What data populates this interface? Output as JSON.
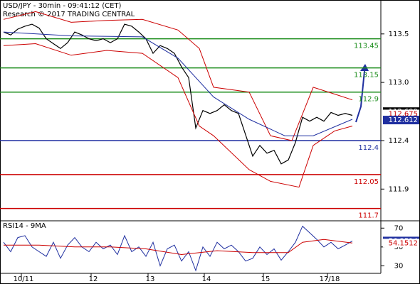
{
  "chart_data": [
    {
      "type": "line",
      "title": "USD/JPY - 30min - 09:41:12 (CET)",
      "subtitle": "Research © 2017 TRADING CENTRAL",
      "xlim": [
        -0.5,
        53
      ],
      "ylim": [
        111.58,
        113.85
      ],
      "yticks": [
        113.5,
        {
          "value": 113.0,
          "label": "113.0"
        },
        112.4,
        111.9
      ],
      "series": [
        {
          "color": "#000000",
          "width": 1.2,
          "x": [
            0,
            1,
            2,
            3,
            4,
            5,
            6,
            7,
            8,
            9,
            10,
            11,
            12,
            13,
            14,
            15,
            16,
            17,
            18,
            19,
            20,
            21,
            22,
            23,
            24,
            25,
            26,
            27,
            28,
            29,
            30,
            31,
            32,
            33,
            34,
            35,
            36,
            37,
            38,
            39,
            40,
            41,
            42,
            43,
            44,
            45,
            46,
            47,
            48,
            49
          ],
          "values": [
            113.52,
            113.49,
            113.55,
            113.58,
            113.6,
            113.56,
            113.45,
            113.4,
            113.35,
            113.41,
            113.52,
            113.49,
            113.45,
            113.43,
            113.45,
            113.41,
            113.45,
            113.6,
            113.58,
            113.52,
            113.45,
            113.3,
            113.38,
            113.35,
            113.3,
            113.16,
            113.05,
            112.53,
            112.71,
            112.68,
            112.71,
            112.77,
            112.71,
            112.68,
            112.46,
            112.24,
            112.35,
            112.27,
            112.3,
            112.16,
            112.2,
            112.38,
            112.64,
            112.6,
            112.64,
            112.6,
            112.69,
            112.66,
            112.68,
            112.66
          ]
        },
        {
          "color": "#cc0000",
          "width": 1,
          "x": [
            0,
            4.5,
            9.5,
            14.5,
            19.5,
            24.5,
            27.5,
            29.5,
            34.5,
            37.5,
            40.5,
            43.5,
            46.5,
            49
          ],
          "values": [
            113.65,
            113.73,
            113.62,
            113.64,
            113.65,
            113.54,
            113.35,
            112.95,
            112.9,
            112.45,
            112.4,
            112.95,
            112.88,
            112.82
          ]
        },
        {
          "color": "#cc0000",
          "width": 1,
          "x": [
            0,
            4.5,
            9.5,
            14.5,
            19.5,
            24.5,
            27.5,
            29.5,
            34.5,
            37.5,
            41.5,
            43.5,
            46.5,
            49
          ],
          "values": [
            113.38,
            113.4,
            113.28,
            113.33,
            113.3,
            113.05,
            112.55,
            112.45,
            112.1,
            111.98,
            111.92,
            112.35,
            112.5,
            112.55
          ]
        },
        {
          "color": "#1f2fa0",
          "width": 1,
          "x": [
            0,
            9.5,
            19.5,
            24.5,
            29.5,
            34.5,
            39.5,
            43.5,
            49
          ],
          "values": [
            113.52,
            113.48,
            113.47,
            113.25,
            112.85,
            112.62,
            112.45,
            112.45,
            112.62
          ]
        }
      ],
      "levels": [
        {
          "value": 113.45,
          "color": "#1a8c1a"
        },
        {
          "value": 113.15,
          "color": "#1a8c1a"
        },
        {
          "value": 112.9,
          "color": "#1a8c1a"
        },
        {
          "value": 112.4,
          "color": "#1f2fa0"
        },
        {
          "value": 112.05,
          "color": "#cc0000"
        },
        {
          "value": 111.7,
          "color": "#cc0000"
        }
      ],
      "markers": [
        {
          "value": 112.699,
          "color": "#000000",
          "filled": true
        },
        {
          "value": 112.675,
          "color": "#cc0000",
          "filled": false
        },
        {
          "value": 112.612,
          "color": "#1f2fa0",
          "filled": true
        }
      ]
    },
    {
      "type": "line",
      "title": "RSI14 - 9MA",
      "xlim": [
        -0.5,
        53
      ],
      "ylim": [
        22,
        77
      ],
      "yticks": [
        70,
        50,
        30
      ],
      "xticks": [
        {
          "value": 2.5,
          "label": "10/11"
        },
        {
          "value": 12.3,
          "label": "12"
        },
        {
          "value": 20.3,
          "label": "13"
        },
        {
          "value": 28.2,
          "label": "14"
        },
        {
          "value": 36.5,
          "label": "15"
        },
        {
          "value": 45.5,
          "label": "17/18"
        }
      ],
      "series": [
        {
          "color": "#1f2fa0",
          "width": 1,
          "x": [
            0,
            1,
            2,
            3,
            4,
            5,
            6,
            7,
            8,
            9,
            10,
            11,
            12,
            13,
            14,
            15,
            16,
            17,
            18,
            19,
            20,
            21,
            22,
            23,
            24,
            25,
            26,
            27,
            28,
            29,
            30,
            31,
            32,
            33,
            34,
            35,
            36,
            37,
            38,
            39,
            40,
            41,
            42,
            43,
            44,
            45,
            46,
            47,
            48,
            49
          ],
          "values": [
            55,
            45,
            60,
            62,
            50,
            45,
            40,
            55,
            38,
            52,
            60,
            50,
            45,
            55,
            48,
            52,
            42,
            62,
            45,
            50,
            40,
            55,
            30,
            48,
            52,
            35,
            45,
            25,
            50,
            40,
            55,
            48,
            52,
            45,
            35,
            38,
            50,
            42,
            48,
            36,
            45,
            55,
            72,
            65,
            58,
            50,
            55,
            48,
            52,
            56.3514
          ]
        },
        {
          "color": "#cc0000",
          "width": 1,
          "x": [
            0,
            5,
            10,
            15,
            20,
            25,
            30,
            35,
            40,
            42,
            45,
            49
          ],
          "values": [
            52,
            52,
            50,
            50,
            48,
            42,
            46,
            44,
            44,
            55,
            58,
            54.1512
          ]
        }
      ],
      "markers": [
        {
          "value": 56.3514,
          "color": "#1f2fa0",
          "filled": true
        },
        {
          "value": 54.1512,
          "color": "#cc0000",
          "filled": false
        }
      ]
    }
  ]
}
